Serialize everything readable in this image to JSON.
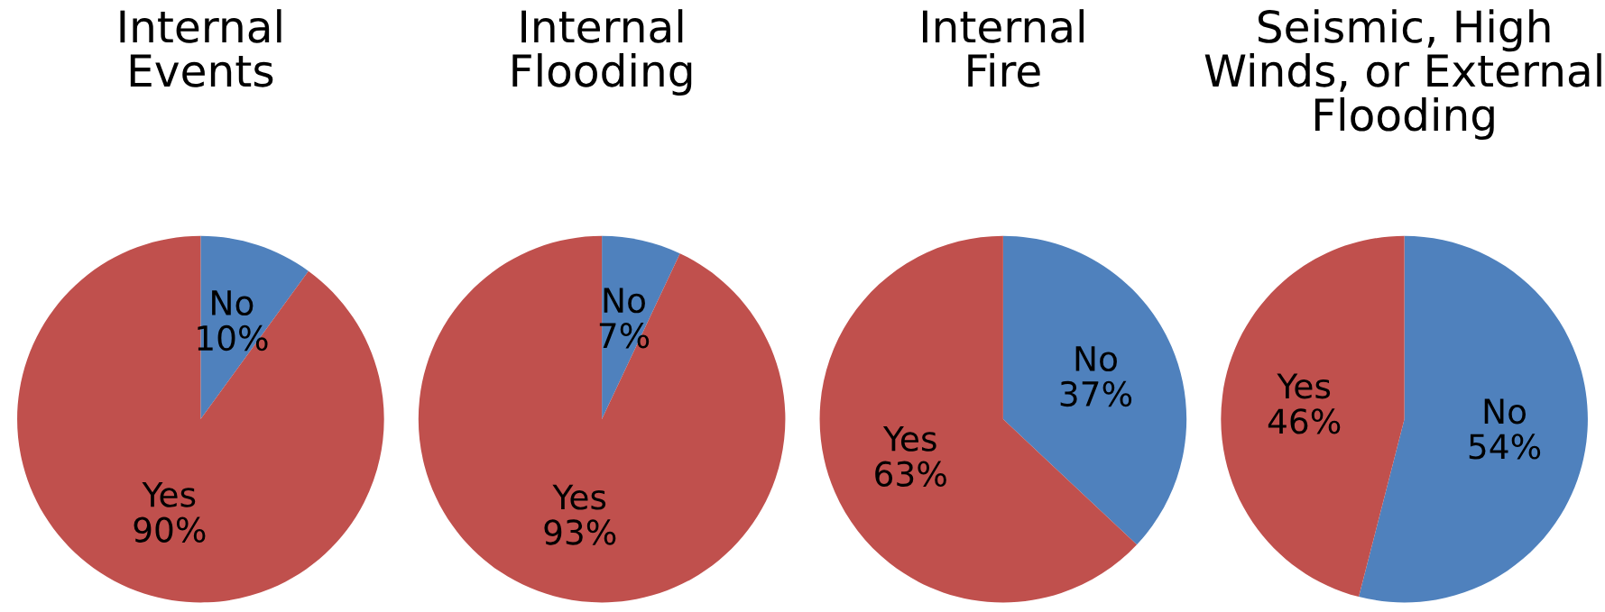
{
  "chart_data": [
    {
      "type": "pie",
      "title": "Internal\nEvents",
      "categories": [
        "No",
        "Yes"
      ],
      "values": [
        10,
        90
      ],
      "value_labels": [
        "10%",
        "90%"
      ],
      "colors": [
        "#4f81bd",
        "#c0504d"
      ]
    },
    {
      "type": "pie",
      "title": "Internal\nFlooding",
      "categories": [
        "No",
        "Yes"
      ],
      "values": [
        7,
        93
      ],
      "value_labels": [
        "7%",
        "93%"
      ],
      "colors": [
        "#4f81bd",
        "#c0504d"
      ]
    },
    {
      "type": "pie",
      "title": "Internal\nFire",
      "categories": [
        "No",
        "Yes"
      ],
      "values": [
        37,
        63
      ],
      "value_labels": [
        "37%",
        "63%"
      ],
      "colors": [
        "#4f81bd",
        "#c0504d"
      ]
    },
    {
      "type": "pie",
      "title": "Seismic, High\nWinds, or External\nFlooding",
      "categories": [
        "No",
        "Yes"
      ],
      "values": [
        54,
        46
      ],
      "value_labels": [
        "54%",
        "46%"
      ],
      "colors": [
        "#4f81bd",
        "#c0504d"
      ]
    }
  ]
}
